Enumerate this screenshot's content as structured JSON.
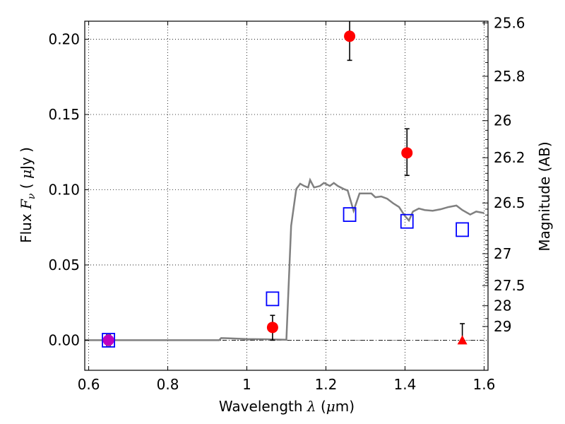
{
  "chart_data": {
    "type": "scatter",
    "xlabel": {
      "prefix": "Wavelength ",
      "symbol": "λ",
      "unit_open": " (",
      "unit_mu": "μ",
      "unit_rest": "m)"
    },
    "ylabel": {
      "prefix": "Flux ",
      "symbol": "F",
      "subscript": "ν",
      "unit_open": " ( ",
      "unit_mu": "μ",
      "unit_rest": "Jy )"
    },
    "y2label": "Magnitude (AB)",
    "xlim": [
      0.59,
      1.61
    ],
    "ylim": [
      -0.02,
      0.212
    ],
    "grid": true,
    "xticks": [
      {
        "v": 0.6,
        "label": "0.6"
      },
      {
        "v": 0.8,
        "label": "0.8"
      },
      {
        "v": 1.0,
        "label": "1"
      },
      {
        "v": 1.2,
        "label": "1.2"
      },
      {
        "v": 1.4,
        "label": "1.4"
      },
      {
        "v": 1.6,
        "label": "1.6"
      }
    ],
    "yticks": [
      {
        "v": 0.0,
        "label": "0.00"
      },
      {
        "v": 0.05,
        "label": "0.05"
      },
      {
        "v": 0.1,
        "label": "0.10"
      },
      {
        "v": 0.15,
        "label": "0.15"
      },
      {
        "v": 0.2,
        "label": "0.20"
      }
    ],
    "y2ticks": [
      {
        "flux": 0.2109,
        "label": "25.6"
      },
      {
        "flux": 0.1754,
        "label": "25.8"
      },
      {
        "flux": 0.1459,
        "label": "26"
      },
      {
        "flux": 0.1213,
        "label": "26.2"
      },
      {
        "flux": 0.0912,
        "label": "26.5"
      },
      {
        "flux": 0.0575,
        "label": "27"
      },
      {
        "flux": 0.0363,
        "label": "27.5"
      },
      {
        "flux": 0.0229,
        "label": "28"
      },
      {
        "flux": 0.0091,
        "label": "29"
      }
    ],
    "y2_minor_flux": [
      0.2017,
      0.1929,
      0.1845,
      0.1677,
      0.1604,
      0.1534,
      0.1395,
      0.1334,
      0.1276,
      0.116,
      0.1109,
      0.1061,
      0.0997,
      0.0871,
      0.0832,
      0.0795,
      0.076,
      0.0727,
      0.0695,
      0.0664,
      0.0635,
      0.0607,
      0.0549,
      0.0525,
      0.0502,
      0.0479,
      0.0458,
      0.0438,
      0.0418,
      0.04,
      0.0382,
      0.0144
    ],
    "series": [
      {
        "kind": "line",
        "color": "#808080",
        "points": [
          [
            0.59,
            0.0
          ],
          [
            0.93,
            0.0
          ],
          [
            0.935,
            0.0014
          ],
          [
            0.95,
            0.0013
          ],
          [
            1.0,
            0.0008
          ],
          [
            1.05,
            0.0006
          ],
          [
            1.1,
            0.0003
          ],
          [
            1.112,
            0.076
          ],
          [
            1.125,
            0.1005
          ],
          [
            1.135,
            0.104
          ],
          [
            1.145,
            0.1025
          ],
          [
            1.155,
            0.1015
          ],
          [
            1.16,
            0.1065
          ],
          [
            1.17,
            0.1015
          ],
          [
            1.185,
            0.1025
          ],
          [
            1.195,
            0.1045
          ],
          [
            1.21,
            0.1025
          ],
          [
            1.22,
            0.1045
          ],
          [
            1.23,
            0.1025
          ],
          [
            1.245,
            0.1005
          ],
          [
            1.255,
            0.0995
          ],
          [
            1.27,
            0.086
          ],
          [
            1.285,
            0.0975
          ],
          [
            1.3,
            0.0975
          ],
          [
            1.315,
            0.0975
          ],
          [
            1.325,
            0.095
          ],
          [
            1.34,
            0.0955
          ],
          [
            1.355,
            0.094
          ],
          [
            1.37,
            0.091
          ],
          [
            1.385,
            0.0885
          ],
          [
            1.4,
            0.0825
          ],
          [
            1.41,
            0.0795
          ],
          [
            1.42,
            0.0855
          ],
          [
            1.435,
            0.0875
          ],
          [
            1.45,
            0.0865
          ],
          [
            1.47,
            0.086
          ],
          [
            1.49,
            0.087
          ],
          [
            1.51,
            0.0885
          ],
          [
            1.53,
            0.0895
          ],
          [
            1.545,
            0.0865
          ],
          [
            1.565,
            0.0835
          ],
          [
            1.58,
            0.0855
          ],
          [
            1.6,
            0.0845
          ]
        ]
      },
      {
        "kind": "open-square",
        "color": "#0000ff",
        "points": [
          [
            0.65,
            0.0
          ],
          [
            1.065,
            0.0275
          ],
          [
            1.26,
            0.0835
          ],
          [
            1.405,
            0.079
          ],
          [
            1.545,
            0.0735
          ]
        ]
      },
      {
        "kind": "filled-circle",
        "color": "#ff0000",
        "points": [
          [
            1.065,
            0.0085
          ],
          [
            1.26,
            0.202
          ],
          [
            1.405,
            0.1245
          ]
        ],
        "errors": [
          [
            0.0,
            0.0165
          ],
          [
            0.186,
            0.2125
          ],
          [
            0.1095,
            0.1405
          ]
        ]
      },
      {
        "kind": "filled-circle",
        "color": "#bf00bf",
        "points": [
          [
            0.65,
            0.0
          ]
        ],
        "errors": [
          [
            -0.0035,
            0.0035
          ]
        ]
      },
      {
        "kind": "upper-limit-triangle",
        "color": "#ff0000",
        "points": [
          [
            1.545,
            0.0
          ]
        ],
        "errors": [
          [
            0.0,
            0.011
          ]
        ]
      }
    ]
  }
}
